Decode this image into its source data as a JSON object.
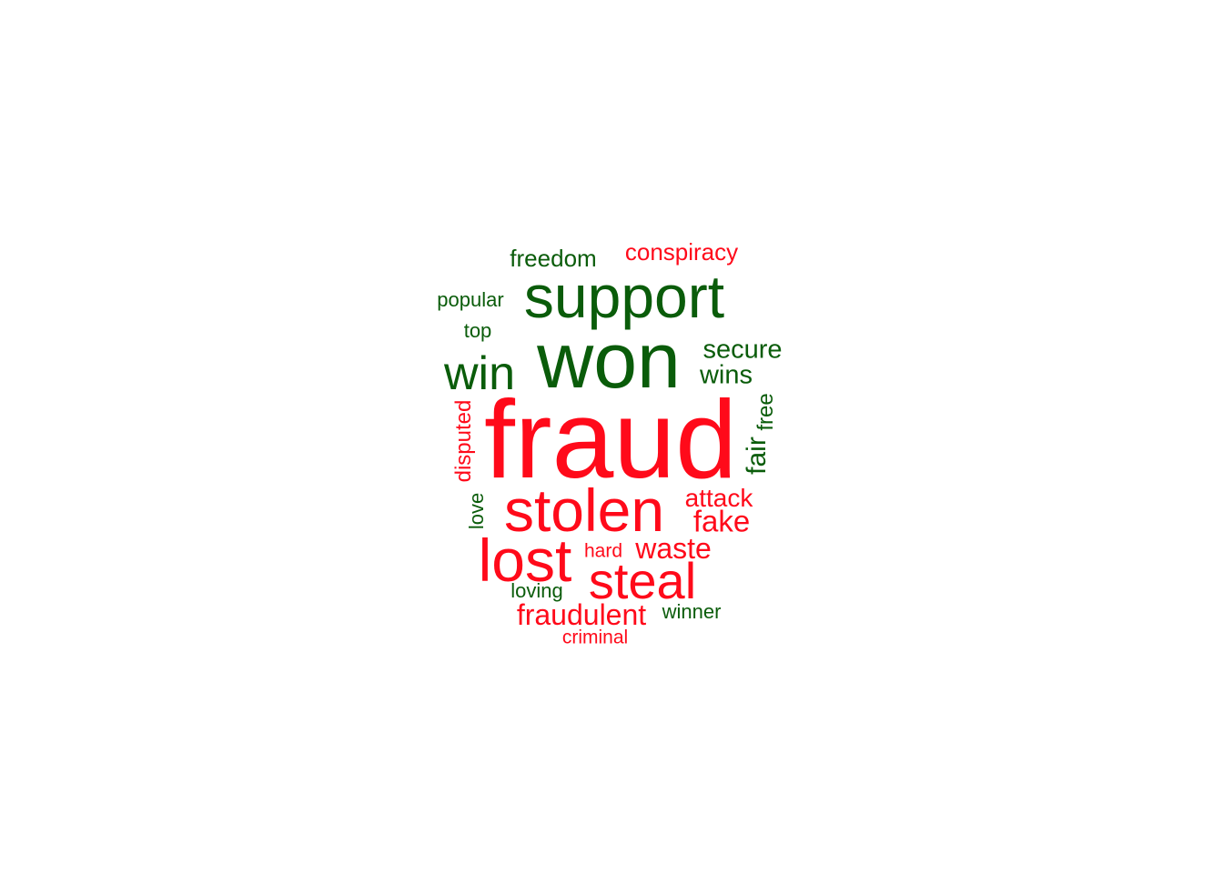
{
  "palette": {
    "positive": "#0a5c0a",
    "negative": "#ff0a1a"
  },
  "words": [
    {
      "text": "fraud",
      "sentiment": "negative"
    },
    {
      "text": "won",
      "sentiment": "positive"
    },
    {
      "text": "support",
      "sentiment": "positive"
    },
    {
      "text": "stolen",
      "sentiment": "negative"
    },
    {
      "text": "lost",
      "sentiment": "negative"
    },
    {
      "text": "steal",
      "sentiment": "negative"
    },
    {
      "text": "win",
      "sentiment": "positive"
    },
    {
      "text": "secure",
      "sentiment": "positive"
    },
    {
      "text": "wins",
      "sentiment": "positive"
    },
    {
      "text": "attack",
      "sentiment": "negative"
    },
    {
      "text": "fake",
      "sentiment": "negative"
    },
    {
      "text": "waste",
      "sentiment": "negative"
    },
    {
      "text": "fraudulent",
      "sentiment": "negative"
    },
    {
      "text": "freedom",
      "sentiment": "positive"
    },
    {
      "text": "conspiracy",
      "sentiment": "negative"
    },
    {
      "text": "popular",
      "sentiment": "positive"
    },
    {
      "text": "top",
      "sentiment": "positive"
    },
    {
      "text": "disputed",
      "sentiment": "negative"
    },
    {
      "text": "fair",
      "sentiment": "positive"
    },
    {
      "text": "free",
      "sentiment": "positive"
    },
    {
      "text": "love",
      "sentiment": "positive"
    },
    {
      "text": "hard",
      "sentiment": "negative"
    },
    {
      "text": "loving",
      "sentiment": "positive"
    },
    {
      "text": "winner",
      "sentiment": "positive"
    },
    {
      "text": "criminal",
      "sentiment": "negative"
    }
  ]
}
